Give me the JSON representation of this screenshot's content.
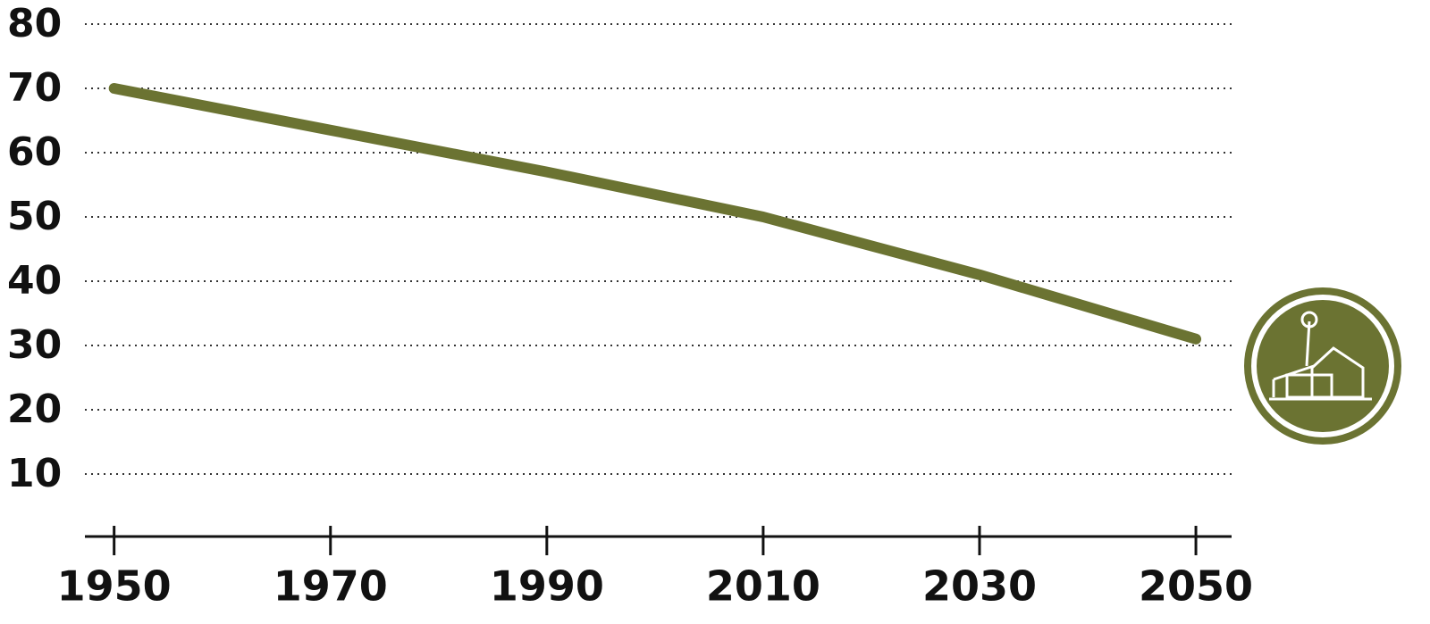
{
  "chart_data": {
    "type": "line",
    "x": [
      1950,
      1970,
      1990,
      2010,
      2030,
      2050
    ],
    "values": [
      70,
      63.5,
      57,
      50,
      41,
      31
    ],
    "color": "#6b7332",
    "xlim": [
      1947.3,
      2053.3
    ],
    "xticks": [
      1950,
      1970,
      1990,
      2010,
      2030,
      2050
    ],
    "ylim": [
      0,
      80
    ],
    "yticks": [
      10,
      20,
      30,
      40,
      50,
      60,
      70,
      80
    ],
    "grid": true
  }
}
